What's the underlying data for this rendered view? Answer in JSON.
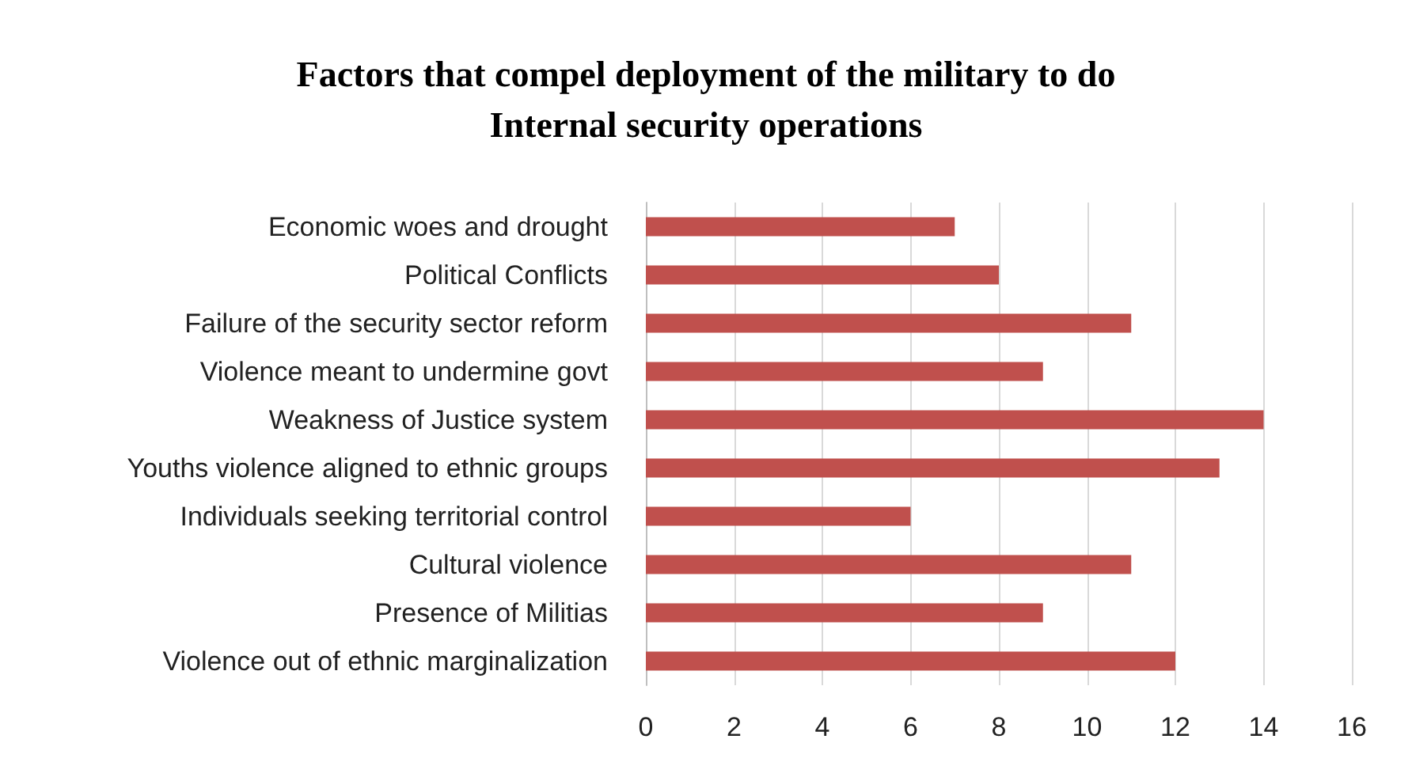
{
  "chart_data": {
    "type": "bar",
    "orientation": "horizontal",
    "title": "Factors that compel deployment of the military to do\nInternal security operations",
    "categories": [
      "Economic woes and drought",
      "Political Conflicts",
      "Failure of the security sector reform",
      "Violence meant to undermine govt",
      "Weakness of Justice system",
      "Youths violence aligned to ethnic groups",
      "Individuals seeking territorial control",
      "Cultural violence",
      "Presence of Militias",
      "Violence out of ethnic marginalization"
    ],
    "values": [
      7,
      8,
      11,
      9,
      14,
      13,
      6,
      11,
      9,
      12
    ],
    "color": "#c0504d",
    "xlim": [
      0,
      16
    ],
    "xticks": [
      0,
      2,
      4,
      6,
      8,
      10,
      12,
      14,
      16
    ],
    "grid": "x"
  }
}
